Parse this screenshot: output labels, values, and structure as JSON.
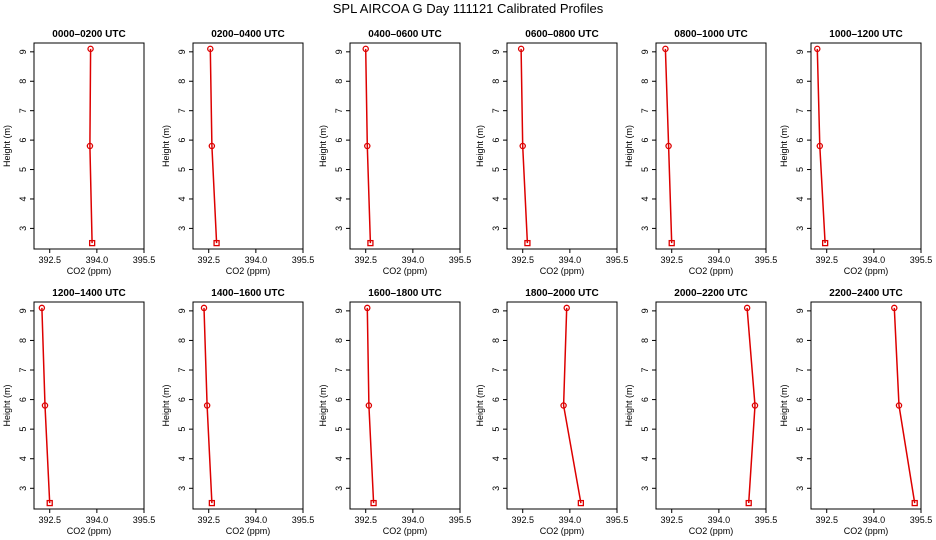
{
  "figure_title": "SPL AIRCOA G  Day 111121  Calibrated Profiles",
  "colors": {
    "series": "#dd0000",
    "axis": "#000000"
  },
  "chart_data": [
    {
      "type": "line",
      "title": "0000–0200 UTC",
      "xlabel": "CO2 (ppm)",
      "ylabel": "Height (m)",
      "xlim": [
        392.0,
        395.5
      ],
      "ylim": [
        2.3,
        9.3
      ],
      "xticks": [
        "392.5",
        "394.0",
        "395.5"
      ],
      "yticks": [
        "3",
        "4",
        "5",
        "6",
        "7",
        "8",
        "9"
      ],
      "x": [
        393.8,
        393.78,
        393.85
      ],
      "y": [
        9.1,
        5.8,
        2.5
      ]
    },
    {
      "type": "line",
      "title": "0200–0400 UTC",
      "xlabel": "CO2 (ppm)",
      "ylabel": "Height (m)",
      "xlim": [
        392.0,
        395.5
      ],
      "ylim": [
        2.3,
        9.3
      ],
      "xticks": [
        "392.5",
        "394.0",
        "395.5"
      ],
      "yticks": [
        "3",
        "4",
        "5",
        "6",
        "7",
        "8",
        "9"
      ],
      "x": [
        392.55,
        392.6,
        392.75
      ],
      "y": [
        9.1,
        5.8,
        2.5
      ]
    },
    {
      "type": "line",
      "title": "0400–0600 UTC",
      "xlabel": "CO2 (ppm)",
      "ylabel": "Height (m)",
      "xlim": [
        392.0,
        395.5
      ],
      "ylim": [
        2.3,
        9.3
      ],
      "xticks": [
        "392.5",
        "394.0",
        "395.5"
      ],
      "yticks": [
        "3",
        "4",
        "5",
        "6",
        "7",
        "8",
        "9"
      ],
      "x": [
        392.5,
        392.55,
        392.65
      ],
      "y": [
        9.1,
        5.8,
        2.5
      ]
    },
    {
      "type": "line",
      "title": "0600–0800 UTC",
      "xlabel": "CO2 (ppm)",
      "ylabel": "Height (m)",
      "xlim": [
        392.0,
        395.5
      ],
      "ylim": [
        2.3,
        9.3
      ],
      "xticks": [
        "392.5",
        "394.0",
        "395.5"
      ],
      "yticks": [
        "3",
        "4",
        "5",
        "6",
        "7",
        "8",
        "9"
      ],
      "x": [
        392.45,
        392.5,
        392.65
      ],
      "y": [
        9.1,
        5.8,
        2.5
      ]
    },
    {
      "type": "line",
      "title": "0800–1000 UTC",
      "xlabel": "CO2 (ppm)",
      "ylabel": "Height (m)",
      "xlim": [
        392.0,
        395.5
      ],
      "ylim": [
        2.3,
        9.3
      ],
      "xticks": [
        "392.5",
        "394.0",
        "395.5"
      ],
      "yticks": [
        "3",
        "4",
        "5",
        "6",
        "7",
        "8",
        "9"
      ],
      "x": [
        392.3,
        392.4,
        392.5
      ],
      "y": [
        9.1,
        5.8,
        2.5
      ]
    },
    {
      "type": "line",
      "title": "1000–1200 UTC",
      "xlabel": "CO2 (ppm)",
      "ylabel": "Height (m)",
      "xlim": [
        392.0,
        395.5
      ],
      "ylim": [
        2.3,
        9.3
      ],
      "xticks": [
        "392.5",
        "394.0",
        "395.5"
      ],
      "yticks": [
        "3",
        "4",
        "5",
        "6",
        "7",
        "8",
        "9"
      ],
      "x": [
        392.2,
        392.28,
        392.45
      ],
      "y": [
        9.1,
        5.8,
        2.5
      ]
    },
    {
      "type": "line",
      "title": "1200–1400 UTC",
      "xlabel": "CO2 (ppm)",
      "ylabel": "Height (m)",
      "xlim": [
        392.0,
        395.5
      ],
      "ylim": [
        2.3,
        9.3
      ],
      "xticks": [
        "392.5",
        "394.0",
        "395.5"
      ],
      "yticks": [
        "3",
        "4",
        "5",
        "6",
        "7",
        "8",
        "9"
      ],
      "x": [
        392.25,
        392.35,
        392.5
      ],
      "y": [
        9.1,
        5.8,
        2.5
      ]
    },
    {
      "type": "line",
      "title": "1400–1600 UTC",
      "xlabel": "CO2 (ppm)",
      "ylabel": "Height (m)",
      "xlim": [
        392.0,
        395.5
      ],
      "ylim": [
        2.3,
        9.3
      ],
      "xticks": [
        "392.5",
        "394.0",
        "395.5"
      ],
      "yticks": [
        "3",
        "4",
        "5",
        "6",
        "7",
        "8",
        "9"
      ],
      "x": [
        392.35,
        392.45,
        392.6
      ],
      "y": [
        9.1,
        5.8,
        2.5
      ]
    },
    {
      "type": "line",
      "title": "1600–1800 UTC",
      "xlabel": "CO2 (ppm)",
      "ylabel": "Height (m)",
      "xlim": [
        392.0,
        395.5
      ],
      "ylim": [
        2.3,
        9.3
      ],
      "xticks": [
        "392.5",
        "394.0",
        "395.5"
      ],
      "yticks": [
        "3",
        "4",
        "5",
        "6",
        "7",
        "8",
        "9"
      ],
      "x": [
        392.55,
        392.6,
        392.75
      ],
      "y": [
        9.1,
        5.8,
        2.5
      ]
    },
    {
      "type": "line",
      "title": "1800–2000 UTC",
      "xlabel": "CO2 (ppm)",
      "ylabel": "Height (m)",
      "xlim": [
        392.0,
        395.5
      ],
      "ylim": [
        2.3,
        9.3
      ],
      "xticks": [
        "392.5",
        "394.0",
        "395.5"
      ],
      "yticks": [
        "3",
        "4",
        "5",
        "6",
        "7",
        "8",
        "9"
      ],
      "x": [
        393.9,
        393.8,
        394.35
      ],
      "y": [
        9.1,
        5.8,
        2.5
      ]
    },
    {
      "type": "line",
      "title": "2000–2200 UTC",
      "xlabel": "CO2 (ppm)",
      "ylabel": "Height (m)",
      "xlim": [
        392.0,
        395.5
      ],
      "ylim": [
        2.3,
        9.3
      ],
      "xticks": [
        "392.5",
        "394.0",
        "395.5"
      ],
      "yticks": [
        "3",
        "4",
        "5",
        "6",
        "7",
        "8",
        "9"
      ],
      "x": [
        394.9,
        395.15,
        394.95
      ],
      "y": [
        9.1,
        5.8,
        2.5
      ]
    },
    {
      "type": "line",
      "title": "2200–2400 UTC",
      "xlabel": "CO2 (ppm)",
      "ylabel": "Height (m)",
      "xlim": [
        392.0,
        395.5
      ],
      "ylim": [
        2.3,
        9.3
      ],
      "xticks": [
        "392.5",
        "394.0",
        "395.5"
      ],
      "yticks": [
        "3",
        "4",
        "5",
        "6",
        "7",
        "8",
        "9"
      ],
      "x": [
        394.65,
        394.8,
        395.3
      ],
      "y": [
        9.1,
        5.8,
        2.5
      ]
    }
  ]
}
